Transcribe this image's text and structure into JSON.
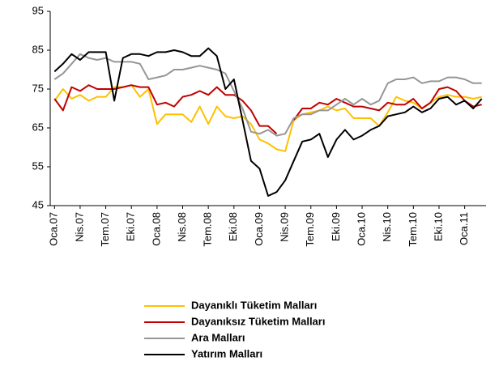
{
  "chart_data": {
    "type": "line",
    "categories": [
      "Oca.07",
      null,
      null,
      "Nis.07",
      null,
      null,
      "Tem.07",
      null,
      null,
      "Eki.07",
      null,
      null,
      "Oca.08",
      null,
      null,
      "Nis.08",
      null,
      null,
      "Tem.08",
      null,
      null,
      "Eki.08",
      null,
      null,
      "Oca.09",
      null,
      null,
      "Nis.09",
      null,
      null,
      "Tem.09",
      null,
      null,
      "Eki.09",
      null,
      null,
      "Oca.10",
      null,
      null,
      "Nis.10",
      null,
      null,
      "Tem.10",
      null,
      null,
      "Eki.10",
      null,
      null,
      "Oca.11",
      null,
      null
    ],
    "series": [
      {
        "name": "Dayanıklı Tüketim Malları",
        "color": "#ffc000",
        "values": [
          72,
          75,
          72.5,
          73.5,
          72,
          73,
          73,
          75.5,
          75.5,
          76,
          73,
          75,
          66,
          68.5,
          68.5,
          68.5,
          66.5,
          70.5,
          66,
          70.5,
          68,
          67.5,
          68,
          66,
          62,
          61,
          59.5,
          59,
          67,
          68.5,
          69,
          69.5,
          70.5,
          69.5,
          70,
          67.5,
          67.5,
          67.5,
          65.5,
          69,
          73,
          72,
          71.5,
          70,
          71.5,
          73,
          73.5,
          73,
          73,
          72.5,
          73
        ]
      },
      {
        "name": "Dayanıksız Tüketim Malları",
        "color": "#c00000",
        "values": [
          72.5,
          69.5,
          75.5,
          74.5,
          76,
          75,
          75,
          75,
          75.5,
          76,
          75.5,
          75.5,
          71,
          71.5,
          70.5,
          73,
          73.5,
          74.5,
          73.5,
          75.5,
          73.5,
          73.5,
          72,
          69.5,
          65.5,
          65.5,
          63.5,
          null,
          67,
          70,
          70,
          71.5,
          71,
          72.5,
          71.5,
          70.5,
          70.5,
          70,
          69.5,
          71.5,
          71,
          71,
          72.5,
          70,
          71.5,
          75,
          75.5,
          74.5,
          72,
          70.5,
          71
        ]
      },
      {
        "name": "Ara Malları",
        "color": "#969696",
        "values": [
          77.5,
          79,
          81.5,
          84,
          83,
          82.5,
          83,
          82,
          82,
          82,
          81.5,
          77.5,
          78,
          78.5,
          80,
          80,
          80.5,
          81,
          80.5,
          80,
          79,
          74.5,
          70,
          64,
          63.5,
          64.5,
          63,
          63.5,
          67.5,
          68.5,
          68.5,
          69.5,
          69.5,
          71,
          72.5,
          71,
          72.5,
          71,
          72,
          76.5,
          77.5,
          77.5,
          78,
          76.5,
          77,
          77,
          78,
          78,
          77.5,
          76.5,
          76.5
        ]
      },
      {
        "name": "Yatırım Malları",
        "color": "#000000",
        "values": [
          79.5,
          81.5,
          84,
          82.5,
          84.5,
          84.5,
          84.5,
          72,
          83,
          84,
          84,
          83.5,
          84.5,
          84.5,
          85,
          84.5,
          83.5,
          83.5,
          85.5,
          83.5,
          75,
          77.5,
          67,
          56.5,
          54.5,
          47.5,
          48.5,
          51.5,
          56.5,
          61.5,
          62,
          63.5,
          57.5,
          62,
          64.5,
          62,
          63,
          64.5,
          65.5,
          68,
          68.5,
          69,
          70.5,
          69,
          70,
          72.5,
          73,
          71,
          72,
          70,
          72.5
        ]
      }
    ],
    "ylim": [
      45,
      95
    ],
    "yticks": [
      45,
      55,
      65,
      75,
      85,
      95
    ],
    "grid": false,
    "legend": "bottom"
  }
}
